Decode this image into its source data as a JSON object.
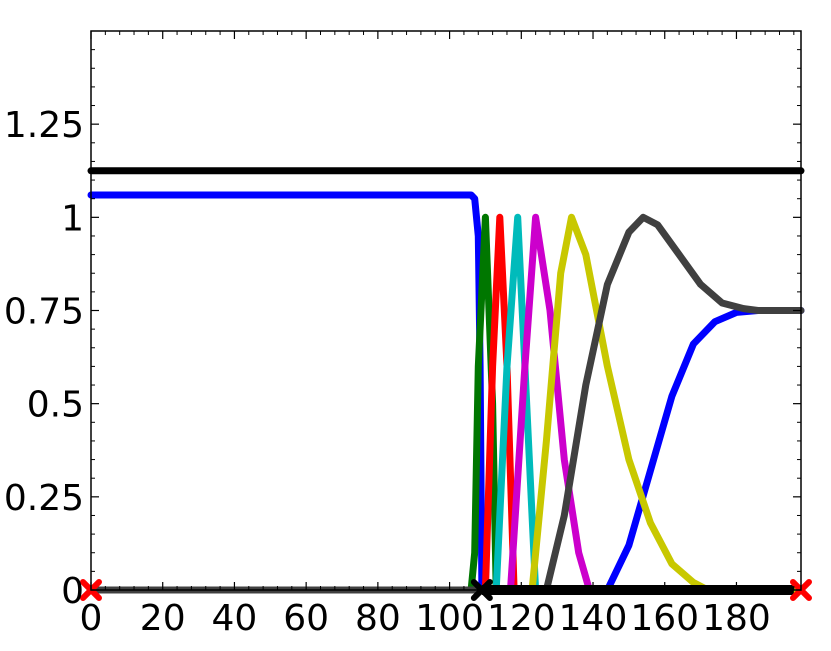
{
  "chart_data": {
    "type": "line",
    "title": "",
    "xlabel": "",
    "ylabel": "",
    "xlim": [
      0,
      198
    ],
    "ylim": [
      0,
      1.5
    ],
    "grid": false,
    "legend": "none",
    "x_ticks": [
      "0",
      "20",
      "40",
      "60",
      "80",
      "100",
      "120",
      "140",
      "160",
      "180"
    ],
    "x_tick_values": [
      0,
      20,
      40,
      60,
      80,
      100,
      120,
      140,
      160,
      180
    ],
    "y_ticks": [
      "0",
      "0.25",
      "0.5",
      "0.75",
      "1",
      "1.25"
    ],
    "y_tick_values": [
      0,
      0.25,
      0.5,
      0.75,
      1,
      1.25
    ],
    "series": [
      {
        "color": "#000000",
        "points": [
          [
            0,
            1.125
          ],
          [
            198,
            1.125
          ]
        ]
      },
      {
        "color": "#0000ff",
        "points": [
          [
            0,
            1.06
          ],
          [
            106,
            1.06
          ],
          [
            107,
            1.05
          ],
          [
            108,
            0.95
          ],
          [
            108.5,
            0.6
          ],
          [
            109,
            0.0
          ],
          [
            198,
            0.0
          ]
        ]
      },
      {
        "color": "#0000ff",
        "points": [
          [
            0,
            0
          ],
          [
            144,
            0
          ],
          [
            150,
            0.12
          ],
          [
            156,
            0.32
          ],
          [
            162,
            0.52
          ],
          [
            168,
            0.66
          ],
          [
            174,
            0.72
          ],
          [
            180,
            0.745
          ],
          [
            186,
            0.75
          ],
          [
            198,
            0.75
          ]
        ]
      },
      {
        "color": "#007700",
        "points": [
          [
            0,
            0
          ],
          [
            106,
            0
          ],
          [
            107,
            0.1
          ],
          [
            108,
            0.6
          ],
          [
            110,
            1.0
          ],
          [
            112,
            0.5
          ],
          [
            113,
            0.0
          ],
          [
            198,
            0
          ]
        ]
      },
      {
        "color": "#ff0000",
        "points": [
          [
            0,
            0
          ],
          [
            110,
            0
          ],
          [
            112,
            0.6
          ],
          [
            114,
            1.0
          ],
          [
            116,
            0.6
          ],
          [
            118,
            0.0
          ],
          [
            198,
            0
          ]
        ]
      },
      {
        "color": "#00bbbb",
        "points": [
          [
            0,
            0
          ],
          [
            113,
            0
          ],
          [
            116,
            0.6
          ],
          [
            119,
            1.0
          ],
          [
            121,
            0.6
          ],
          [
            124,
            0.0
          ],
          [
            198,
            0
          ]
        ]
      },
      {
        "color": "#cc00cc",
        "points": [
          [
            0,
            0
          ],
          [
            117,
            0
          ],
          [
            121,
            0.6
          ],
          [
            124,
            1.0
          ],
          [
            128,
            0.75
          ],
          [
            132,
            0.35
          ],
          [
            136,
            0.1
          ],
          [
            139,
            0.0
          ],
          [
            198,
            0
          ]
        ]
      },
      {
        "color": "#c8c800",
        "points": [
          [
            0,
            0
          ],
          [
            123,
            0
          ],
          [
            127,
            0.4
          ],
          [
            131,
            0.85
          ],
          [
            134,
            1.0
          ],
          [
            138,
            0.9
          ],
          [
            144,
            0.6
          ],
          [
            150,
            0.35
          ],
          [
            156,
            0.18
          ],
          [
            162,
            0.07
          ],
          [
            168,
            0.02
          ],
          [
            172,
            0.0
          ],
          [
            198,
            0
          ]
        ]
      },
      {
        "color": "#404040",
        "points": [
          [
            0,
            0
          ],
          [
            127,
            0
          ],
          [
            132,
            0.2
          ],
          [
            138,
            0.55
          ],
          [
            144,
            0.82
          ],
          [
            150,
            0.96
          ],
          [
            154,
            1.0
          ],
          [
            158,
            0.98
          ],
          [
            164,
            0.9
          ],
          [
            170,
            0.82
          ],
          [
            176,
            0.77
          ],
          [
            182,
            0.755
          ],
          [
            186,
            0.75
          ],
          [
            198,
            0.75
          ]
        ]
      }
    ],
    "markers": [
      {
        "shape": "x",
        "color": "#ff0000",
        "x": 0,
        "y": 0
      },
      {
        "shape": "x",
        "color": "#ff0000",
        "x": 198,
        "y": 0
      },
      {
        "shape": "x",
        "color": "#000000",
        "x": 109,
        "y": 0
      }
    ],
    "marker_band": {
      "color": "#000000",
      "x_from": 109,
      "x_to": 196,
      "y": 0
    }
  }
}
